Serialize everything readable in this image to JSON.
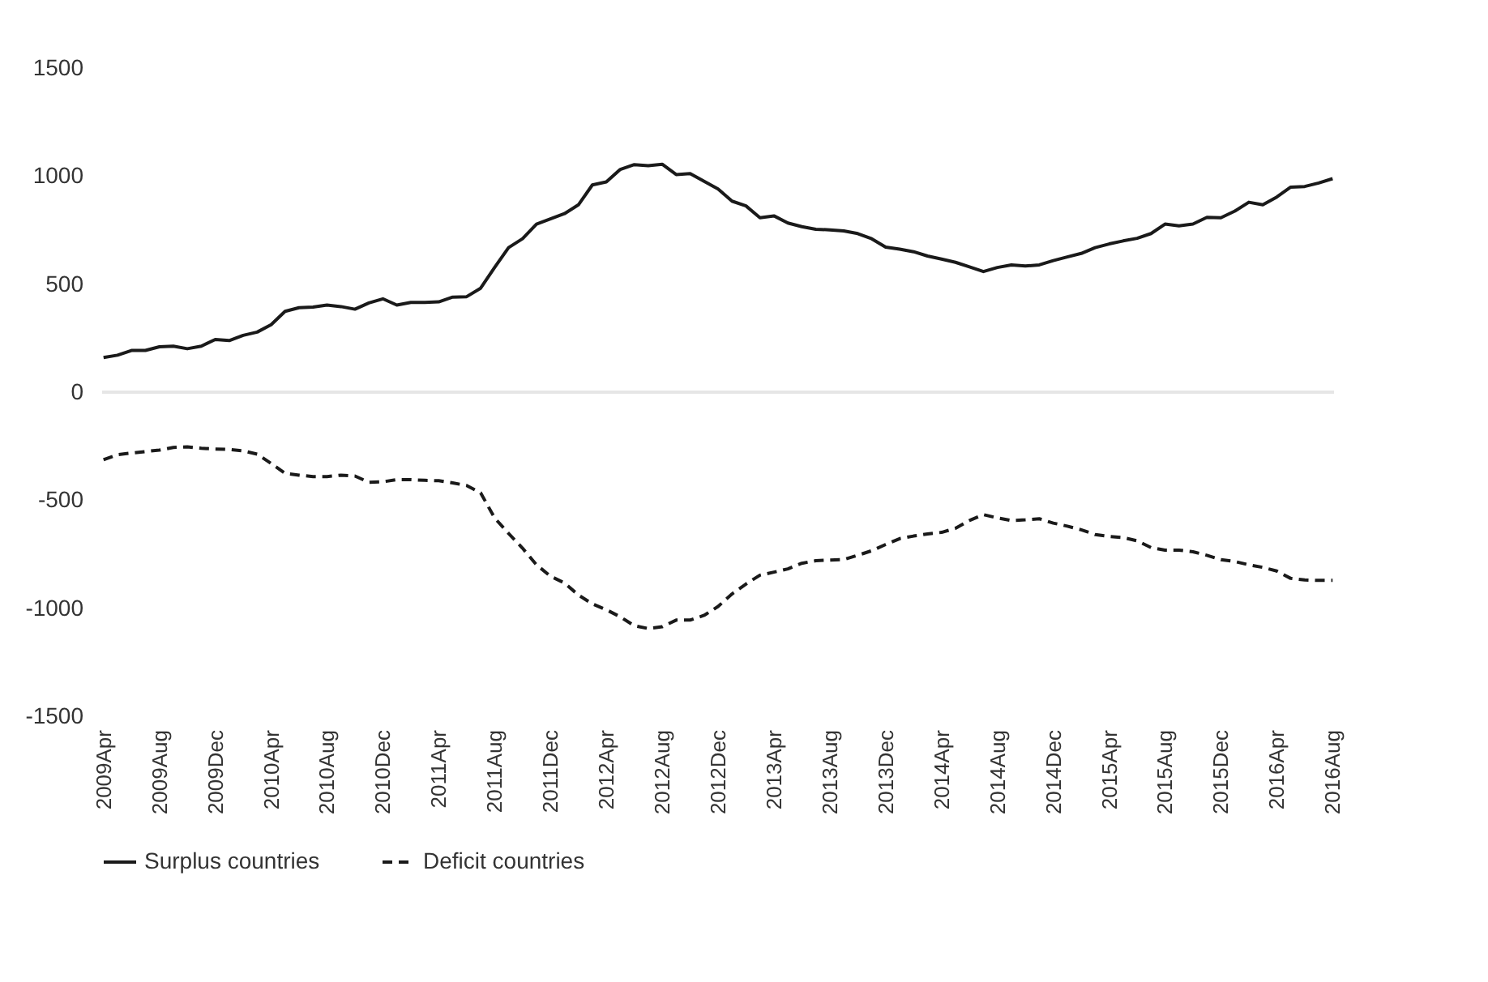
{
  "chart_data": {
    "type": "line",
    "categories": [
      "2009Apr",
      null,
      null,
      null,
      "2009Aug",
      null,
      null,
      null,
      "2009Dec",
      null,
      null,
      null,
      "2010Apr",
      null,
      null,
      null,
      "2010Aug",
      null,
      null,
      null,
      "2010Dec",
      null,
      null,
      null,
      "2011Apr",
      null,
      null,
      null,
      "2011Aug",
      null,
      null,
      null,
      "2011Dec",
      null,
      null,
      null,
      "2012Apr",
      null,
      null,
      null,
      "2012Aug",
      null,
      null,
      null,
      "2012Dec",
      null,
      null,
      null,
      "2013Apr",
      null,
      null,
      null,
      "2013Aug",
      null,
      null,
      null,
      "2013Dec",
      null,
      null,
      null,
      "2014Apr",
      null,
      null,
      null,
      "2014Aug",
      null,
      null,
      null,
      "2014Dec",
      null,
      null,
      null,
      "2015Apr",
      null,
      null,
      null,
      "2015Aug",
      null,
      null,
      null,
      "2015Dec",
      null,
      null,
      null,
      "2016Apr",
      null,
      null,
      null,
      "2016Aug"
    ],
    "series": [
      {
        "name": "Surplus  countries",
        "color": "#1a1a1a",
        "line_style": "solid",
        "values": [
          160,
          171,
          193,
          193,
          210,
          213,
          201,
          213,
          244,
          239,
          263,
          278,
          312,
          374,
          391,
          394,
          403,
          396,
          384,
          413,
          432,
          403,
          415,
          415,
          418,
          440,
          442,
          481,
          577,
          669,
          710,
          778,
          802,
          826,
          867,
          959,
          973,
          1031,
          1053,
          1048,
          1055,
          1007,
          1012,
          976,
          940,
          884,
          862,
          807,
          816,
          783,
          766,
          754,
          751,
          746,
          734,
          710,
          671,
          662,
          650,
          630,
          616,
          601,
          580,
          558,
          577,
          589,
          584,
          589,
          609,
          626,
          642,
          669,
          686,
          700,
          712,
          734,
          778,
          770,
          778,
          809,
          807,
          838,
          879,
          867,
          903,
          949,
          952,
          968,
          988
        ]
      },
      {
        "name": "Deficit countries",
        "color": "#1a1a1a",
        "line_style": "dashed",
        "values": [
          -313,
          -289,
          -282,
          -275,
          -268,
          -256,
          -253,
          -260,
          -263,
          -265,
          -272,
          -287,
          -330,
          -376,
          -384,
          -391,
          -391,
          -384,
          -388,
          -417,
          -415,
          -405,
          -405,
          -408,
          -410,
          -420,
          -432,
          -466,
          -582,
          -654,
          -722,
          -799,
          -852,
          -883,
          -939,
          -980,
          -1007,
          -1040,
          -1081,
          -1094,
          -1086,
          -1055,
          -1055,
          -1033,
          -992,
          -934,
          -888,
          -847,
          -833,
          -818,
          -792,
          -780,
          -777,
          -775,
          -755,
          -734,
          -705,
          -678,
          -666,
          -656,
          -649,
          -630,
          -594,
          -567,
          -582,
          -594,
          -591,
          -586,
          -606,
          -620,
          -637,
          -659,
          -668,
          -673,
          -688,
          -719,
          -731,
          -731,
          -739,
          -755,
          -775,
          -784,
          -799,
          -811,
          -828,
          -862,
          -869,
          -871,
          -871
        ]
      }
    ],
    "ylim": [
      -1500,
      1500
    ],
    "yticks": [
      -1500,
      -1000,
      -500,
      0,
      500,
      1000,
      1500
    ],
    "ref_lines": [
      {
        "axis": "y",
        "value": 0,
        "color": "#e6e6e6"
      }
    ],
    "grid": false,
    "legend": "bottom"
  }
}
